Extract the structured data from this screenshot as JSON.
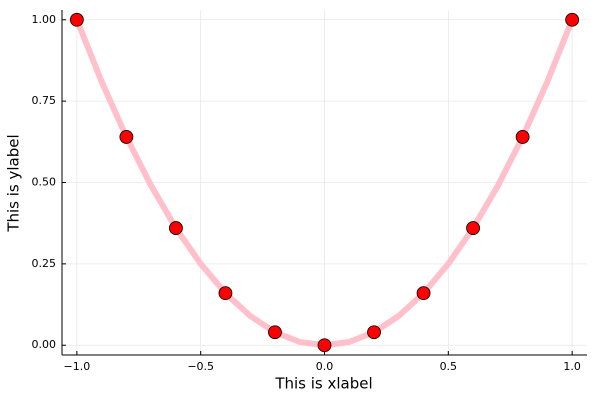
{
  "chart_data": {
    "type": "line",
    "xlabel": "This is xlabel",
    "ylabel": "This is ylabel",
    "xlim": [
      -1.06,
      1.06
    ],
    "ylim": [
      -0.03,
      1.03
    ],
    "xticks": [
      {
        "value": -1,
        "label": "−1.0"
      },
      {
        "value": -0.5,
        "label": "−0.5"
      },
      {
        "value": 0,
        "label": "0.0"
      },
      {
        "value": 0.5,
        "label": "0.5"
      },
      {
        "value": 1,
        "label": "1.0"
      }
    ],
    "yticks": [
      {
        "value": 0,
        "label": "0.00"
      },
      {
        "value": 0.25,
        "label": "0.25"
      },
      {
        "value": 0.5,
        "label": "0.50"
      },
      {
        "value": 0.75,
        "label": "0.75"
      },
      {
        "value": 1,
        "label": "1.00"
      }
    ],
    "grid": true,
    "series": [
      {
        "mode": "line",
        "color": "#ffc0cb",
        "x": [
          -1,
          -0.9,
          -0.8,
          -0.7,
          -0.6,
          -0.5,
          -0.4,
          -0.3,
          -0.2,
          -0.1,
          0,
          0.1,
          0.2,
          0.3,
          0.4,
          0.5,
          0.6,
          0.7,
          0.8,
          0.9,
          1
        ],
        "values": [
          1,
          0.81,
          0.64,
          0.49,
          0.36,
          0.25,
          0.16,
          0.09,
          0.04,
          0.01,
          0,
          0.01,
          0.04,
          0.09,
          0.16,
          0.25,
          0.36,
          0.49,
          0.64,
          0.81,
          1
        ]
      },
      {
        "mode": "scatter",
        "color": "#ff0000",
        "x": [
          -1,
          -0.8,
          -0.6,
          -0.4,
          -0.2,
          0,
          0.2,
          0.4,
          0.6,
          0.8,
          1
        ],
        "values": [
          1,
          0.64,
          0.36,
          0.16,
          0.04,
          0,
          0.04,
          0.16,
          0.36,
          0.64,
          1
        ]
      }
    ]
  }
}
